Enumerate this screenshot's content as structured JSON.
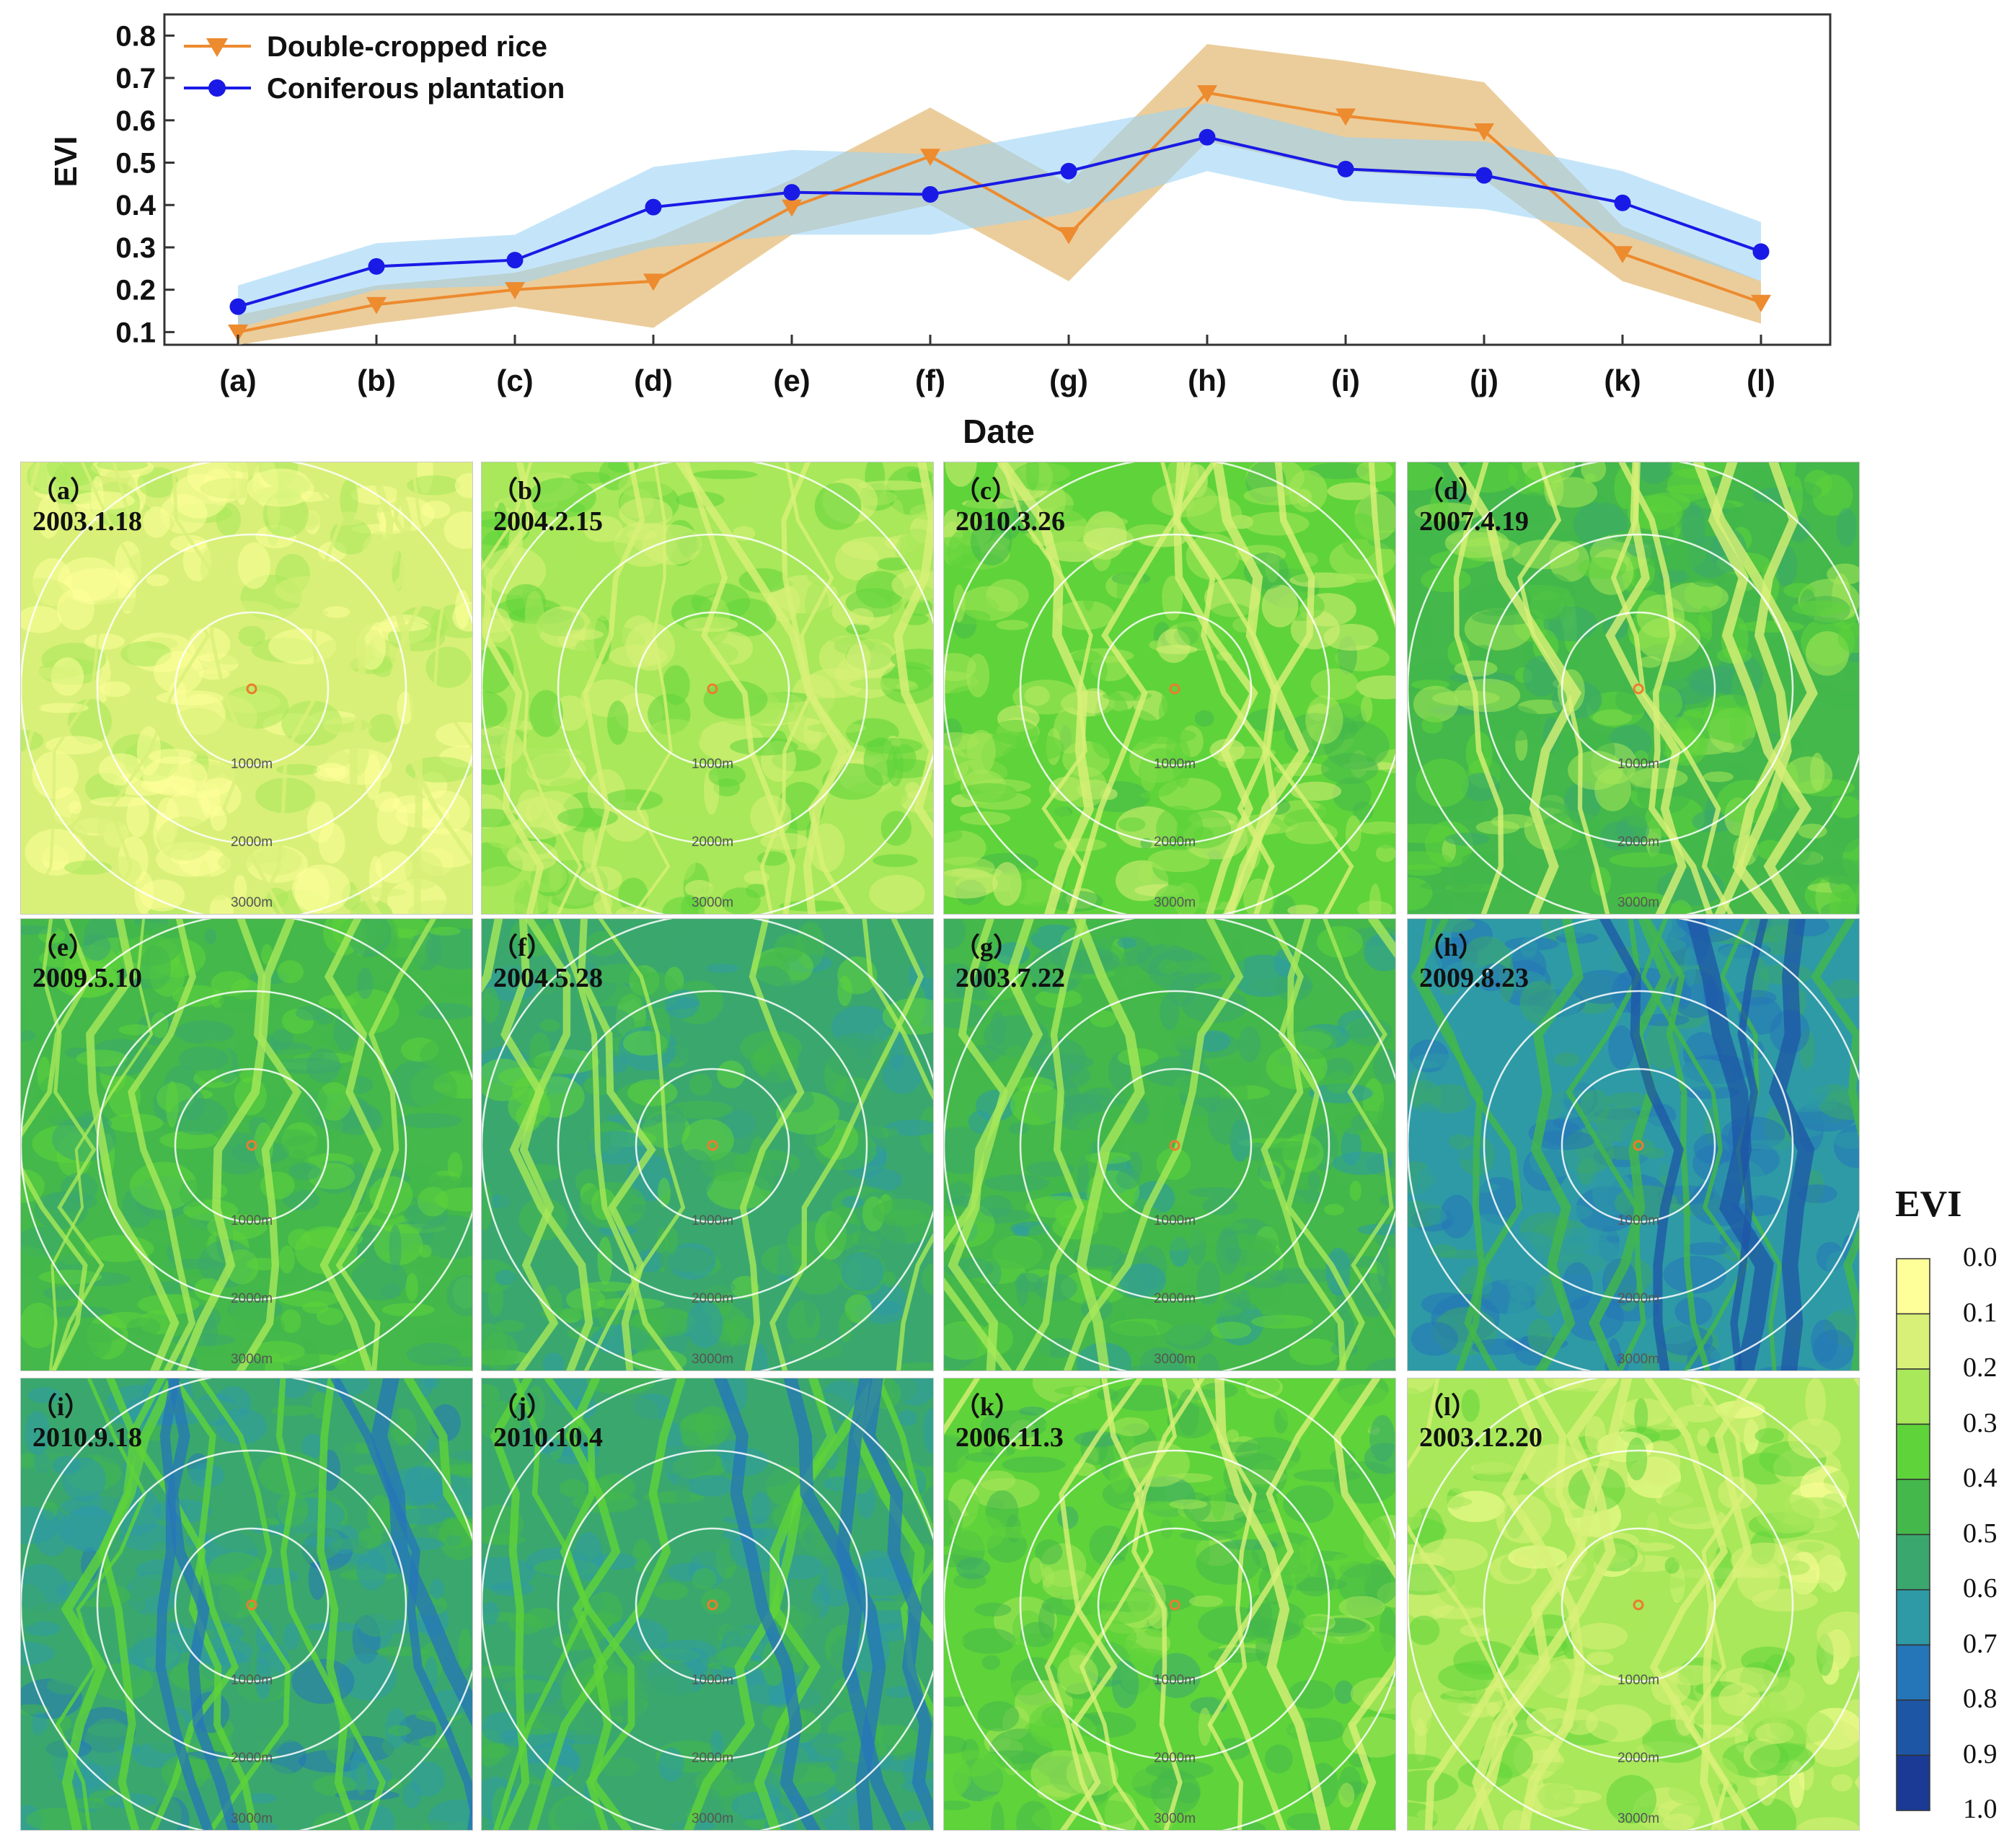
{
  "chart_data": {
    "type": "line",
    "ylabel": "EVI",
    "xlabel": "Date",
    "categories": [
      "(a)",
      "(b)",
      "(c)",
      "(d)",
      "(e)",
      "(f)",
      "(g)",
      "(h)",
      "(i)",
      "(j)",
      "(k)",
      "(l)"
    ],
    "ylim": [
      0.07,
      0.85
    ],
    "yticks": [
      "0.1",
      "0.2",
      "0.3",
      "0.4",
      "0.5",
      "0.6",
      "0.7",
      "0.8"
    ],
    "legend_position": "top-left",
    "series": [
      {
        "name": "Double-cropped rice",
        "color": "#ED8B2F",
        "band_color": "#E8C48A",
        "marker": "triangle-down",
        "values": [
          0.1,
          0.165,
          0.2,
          0.22,
          0.395,
          0.515,
          0.33,
          0.665,
          0.61,
          0.575,
          0.285,
          0.17
        ],
        "upper": [
          0.14,
          0.21,
          0.24,
          0.32,
          0.46,
          0.63,
          0.45,
          0.78,
          0.74,
          0.69,
          0.35,
          0.22
        ],
        "lower": [
          0.07,
          0.12,
          0.16,
          0.11,
          0.33,
          0.4,
          0.22,
          0.55,
          0.48,
          0.46,
          0.22,
          0.12
        ]
      },
      {
        "name": "Coniferous plantation",
        "color": "#1A1AE6",
        "band_color": "#9CD3F5",
        "marker": "circle",
        "values": [
          0.16,
          0.255,
          0.27,
          0.395,
          0.43,
          0.425,
          0.48,
          0.56,
          0.485,
          0.47,
          0.405,
          0.29
        ],
        "upper": [
          0.21,
          0.31,
          0.33,
          0.49,
          0.53,
          0.52,
          0.58,
          0.64,
          0.56,
          0.55,
          0.48,
          0.36
        ],
        "lower": [
          0.11,
          0.2,
          0.21,
          0.3,
          0.33,
          0.33,
          0.38,
          0.48,
          0.41,
          0.39,
          0.33,
          0.22
        ]
      }
    ]
  },
  "maps": [
    {
      "label": "（a）",
      "date": "2003.1.18",
      "mean": 0.12
    },
    {
      "label": "（b）",
      "date": "2004.2.15",
      "mean": 0.25
    },
    {
      "label": "（c）",
      "date": "2010.3.26",
      "mean": 0.3
    },
    {
      "label": "（d）",
      "date": "2007.4.19",
      "mean": 0.4
    },
    {
      "label": "（e）",
      "date": "2009.5.10",
      "mean": 0.45
    },
    {
      "label": "（f）",
      "date": "2004.5.28",
      "mean": 0.5
    },
    {
      "label": "（g）",
      "date": "2003.7.22",
      "mean": 0.48
    },
    {
      "label": "（h）",
      "date": "2009.8.23",
      "mean": 0.66
    },
    {
      "label": "（i）",
      "date": "2010.9.18",
      "mean": 0.58
    },
    {
      "label": "（j）",
      "date": "2010.10.4",
      "mean": 0.56
    },
    {
      "label": "（k）",
      "date": "2006.11.3",
      "mean": 0.38
    },
    {
      "label": "（l）",
      "date": "2003.12.20",
      "mean": 0.22
    }
  ],
  "ring_labels": [
    "1000m",
    "2000m",
    "3000m"
  ],
  "colorbar": {
    "title": "EVI",
    "ticks": [
      "0.0",
      "0.1",
      "0.2",
      "0.3",
      "0.4",
      "0.5",
      "0.6",
      "0.7",
      "0.8",
      "0.9",
      "1.0"
    ],
    "colors": [
      "#FFFF99",
      "#D8F078",
      "#A8E85A",
      "#5FD33A",
      "#44B84A",
      "#3AA86E",
      "#2E9AA6",
      "#2576B8",
      "#1E56A6",
      "#1A3A96",
      "#14207E"
    ]
  }
}
